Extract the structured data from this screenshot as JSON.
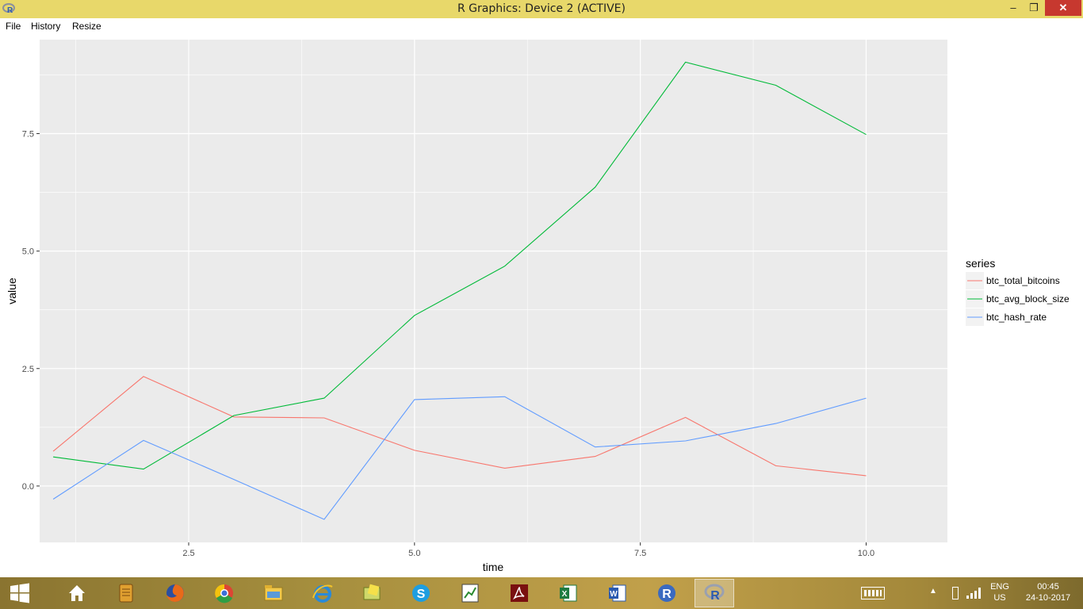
{
  "window": {
    "title": "R Graphics: Device 2 (ACTIVE)",
    "minimize_glyph": "–",
    "maximize_glyph": "❐",
    "close_glyph": "✕"
  },
  "menu": {
    "items": [
      "File",
      "History",
      "Resize"
    ]
  },
  "colors": {
    "panel_bg": "#ebebeb",
    "grid": "#ffffff",
    "series_red": "#f8766d",
    "series_green": "#00ba38",
    "series_blue": "#619cff"
  },
  "chart_data": {
    "type": "line",
    "xlabel": "time",
    "ylabel": "value",
    "xlim": [
      0.85,
      10.9
    ],
    "ylim": [
      -1.2,
      9.5
    ],
    "x_ticks": [
      2.5,
      5.0,
      7.5,
      10.0
    ],
    "x_tick_labels": [
      "2.5",
      "5.0",
      "7.5",
      "10.0"
    ],
    "y_ticks": [
      0.0,
      2.5,
      5.0,
      7.5
    ],
    "y_tick_labels": [
      "0.0",
      "2.5",
      "5.0",
      "7.5"
    ],
    "grid": true,
    "legend": {
      "title": "series",
      "placement": "right"
    },
    "x": [
      1,
      2,
      3,
      4,
      5,
      6,
      7,
      8,
      9,
      10
    ],
    "series": [
      {
        "name": "btc_total_bitcoins",
        "color": "#f8766d",
        "values": [
          0.74,
          2.33,
          1.47,
          1.45,
          0.76,
          0.38,
          0.63,
          1.46,
          0.43,
          0.22
        ]
      },
      {
        "name": "btc_avg_block_size",
        "color": "#00ba38",
        "values": [
          0.62,
          0.36,
          1.5,
          1.87,
          3.63,
          4.68,
          6.36,
          9.02,
          8.53,
          7.48
        ]
      },
      {
        "name": "btc_hash_rate",
        "color": "#619cff",
        "values": [
          -0.28,
          0.97,
          0.14,
          -0.71,
          1.84,
          1.9,
          0.83,
          0.96,
          1.33,
          1.87
        ]
      }
    ]
  },
  "taskbar": {
    "apps": [
      {
        "name": "home-icon"
      },
      {
        "name": "notes-icon"
      },
      {
        "name": "firefox-icon"
      },
      {
        "name": "chrome-icon"
      },
      {
        "name": "file-explorer-icon"
      },
      {
        "name": "internet-explorer-icon"
      },
      {
        "name": "folder-notes-icon"
      },
      {
        "name": "skype-icon"
      },
      {
        "name": "chart-app-icon"
      },
      {
        "name": "acrobat-icon"
      },
      {
        "name": "excel-icon"
      },
      {
        "name": "word-icon"
      },
      {
        "name": "r-console-icon"
      },
      {
        "name": "r-graphics-icon"
      }
    ],
    "language_top": "ENG",
    "language_bottom": "US",
    "time": "00:45",
    "date": "24-10-2017"
  }
}
